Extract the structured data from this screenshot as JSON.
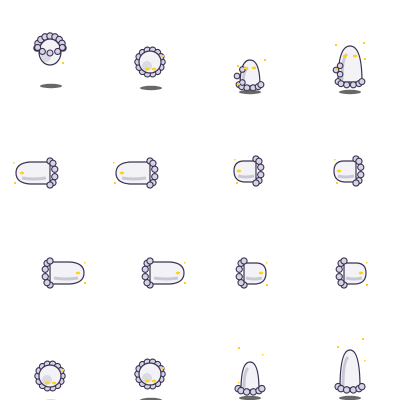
{
  "sprite_sheet": {
    "grid": {
      "rows": 4,
      "columns": 4
    },
    "colors": {
      "body": "#f2f2f7",
      "body_shade": "#c9c9d6",
      "outline": "#3a3350",
      "frill_light": "#d8d3e6",
      "spark": "#ffd21a",
      "shadow": "#4d4d4d"
    },
    "rows": [
      {
        "row": "row-1",
        "frames": [
          {
            "pose": "crumpled-down",
            "sparks": 1,
            "shadow": true
          },
          {
            "pose": "crumpled-round",
            "sparks": 1,
            "shadow": true
          },
          {
            "pose": "upright-small",
            "sparks": 2,
            "shadow": true
          },
          {
            "pose": "upright-tall",
            "sparks": 2,
            "shadow": true
          }
        ]
      },
      {
        "row": "row-2",
        "frames": [
          {
            "pose": "flying-left",
            "sparks": 1,
            "shadow": false
          },
          {
            "pose": "flying-left",
            "sparks": 1,
            "shadow": false
          },
          {
            "pose": "flying-left-short",
            "sparks": 1,
            "shadow": false
          },
          {
            "pose": "flying-left-short",
            "sparks": 1,
            "shadow": false
          }
        ]
      },
      {
        "row": "row-3",
        "frames": [
          {
            "pose": "flying-right",
            "sparks": 1,
            "shadow": false
          },
          {
            "pose": "flying-right",
            "sparks": 1,
            "shadow": false
          },
          {
            "pose": "flying-right-short",
            "sparks": 1,
            "shadow": false
          },
          {
            "pose": "flying-right-short",
            "sparks": 1,
            "shadow": false
          }
        ]
      },
      {
        "row": "row-4",
        "frames": [
          {
            "pose": "crumpled-round",
            "sparks": 1,
            "shadow": true
          },
          {
            "pose": "crumpled-round",
            "sparks": 2,
            "shadow": true
          },
          {
            "pose": "upright-back",
            "sparks": 1,
            "shadow": true
          },
          {
            "pose": "upright-back-tall",
            "sparks": 2,
            "shadow": true
          }
        ]
      }
    ]
  }
}
